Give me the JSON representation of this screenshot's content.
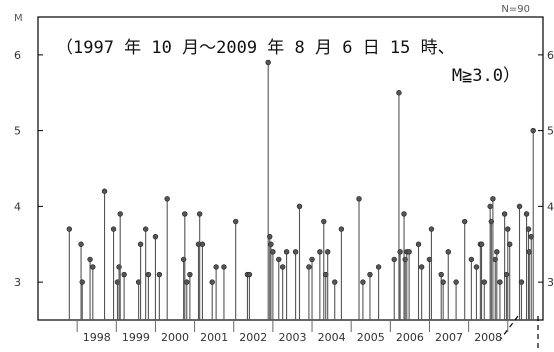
{
  "chart_data": {
    "type": "scatter",
    "title": "",
    "ylabel": "M",
    "count_label": "N=90",
    "annotation_lines": [
      "（1997 年 10 月～2009 年 8 月 6 日 15 時、",
      "M≧3.0）"
    ],
    "ylim": [
      2.5,
      6.5
    ],
    "yticks": [
      3,
      4,
      5,
      6
    ],
    "xlim": [
      1997.0,
      2009.9
    ],
    "xtick_labels": [
      "1998",
      "1999",
      "2000",
      "2001",
      "2002",
      "2003",
      "2004",
      "2005",
      "2006",
      "2007",
      "2008"
    ],
    "grid": false,
    "series": [
      {
        "points": [
          [
            1997.8,
            3.7
          ],
          [
            1998.1,
            3.5
          ],
          [
            1998.13,
            3.0
          ],
          [
            1998.33,
            3.3
          ],
          [
            1998.4,
            3.2
          ],
          [
            1998.7,
            4.2
          ],
          [
            1998.93,
            3.7
          ],
          [
            1999.03,
            3.0
          ],
          [
            1999.07,
            3.2
          ],
          [
            1999.1,
            3.9
          ],
          [
            1999.2,
            3.1
          ],
          [
            1999.57,
            3.0
          ],
          [
            1999.62,
            3.5
          ],
          [
            1999.75,
            3.7
          ],
          [
            1999.82,
            3.1
          ],
          [
            2000.0,
            3.6
          ],
          [
            2000.1,
            3.1
          ],
          [
            2000.3,
            4.1
          ],
          [
            2000.72,
            3.3
          ],
          [
            2000.75,
            3.9
          ],
          [
            2000.8,
            3.0
          ],
          [
            2000.88,
            3.1
          ],
          [
            2001.1,
            3.5
          ],
          [
            2001.13,
            3.9
          ],
          [
            2001.2,
            3.5
          ],
          [
            2001.45,
            3.0
          ],
          [
            2001.55,
            3.2
          ],
          [
            2001.75,
            3.2
          ],
          [
            2002.05,
            3.8
          ],
          [
            2002.35,
            3.1
          ],
          [
            2002.4,
            3.1
          ],
          [
            2002.88,
            5.9
          ],
          [
            2002.92,
            3.6
          ],
          [
            2002.95,
            3.5
          ],
          [
            2003.0,
            3.4
          ],
          [
            2003.15,
            3.3
          ],
          [
            2003.25,
            3.2
          ],
          [
            2003.35,
            3.4
          ],
          [
            2003.58,
            3.4
          ],
          [
            2003.68,
            4.0
          ],
          [
            2003.92,
            3.2
          ],
          [
            2004.0,
            3.3
          ],
          [
            2004.2,
            3.4
          ],
          [
            2004.3,
            3.8
          ],
          [
            2004.35,
            3.1
          ],
          [
            2004.4,
            3.4
          ],
          [
            2004.58,
            3.0
          ],
          [
            2004.75,
            3.7
          ],
          [
            2005.2,
            4.1
          ],
          [
            2005.3,
            3.0
          ],
          [
            2005.48,
            3.1
          ],
          [
            2005.7,
            3.2
          ],
          [
            2006.1,
            3.3
          ],
          [
            2006.22,
            5.5
          ],
          [
            2006.25,
            3.4
          ],
          [
            2006.35,
            3.9
          ],
          [
            2006.38,
            3.3
          ],
          [
            2006.42,
            3.4
          ],
          [
            2006.48,
            3.4
          ],
          [
            2006.72,
            3.5
          ],
          [
            2006.8,
            3.2
          ],
          [
            2007.0,
            3.3
          ],
          [
            2007.05,
            3.7
          ],
          [
            2007.3,
            3.1
          ],
          [
            2007.35,
            3.0
          ],
          [
            2007.48,
            3.4
          ],
          [
            2007.68,
            3.0
          ],
          [
            2007.9,
            3.8
          ],
          [
            2008.07,
            3.3
          ],
          [
            2008.2,
            3.2
          ],
          [
            2008.3,
            3.5
          ],
          [
            2008.33,
            3.5
          ],
          [
            2008.4,
            3.0
          ],
          [
            2008.55,
            4.0
          ],
          [
            2008.58,
            3.8
          ],
          [
            2008.62,
            4.1
          ],
          [
            2008.68,
            3.3
          ],
          [
            2008.72,
            3.4
          ],
          [
            2008.8,
            3.0
          ],
          [
            2008.92,
            3.9
          ],
          [
            2008.97,
            3.1
          ],
          [
            2009.0,
            3.7
          ],
          [
            2009.05,
            3.5
          ],
          [
            2009.3,
            4.0
          ],
          [
            2009.35,
            3.0
          ],
          [
            2009.48,
            3.9
          ],
          [
            2009.53,
            3.7
          ],
          [
            2009.55,
            3.4
          ],
          [
            2009.6,
            3.6
          ],
          [
            2009.65,
            5.0
          ]
        ]
      }
    ]
  }
}
